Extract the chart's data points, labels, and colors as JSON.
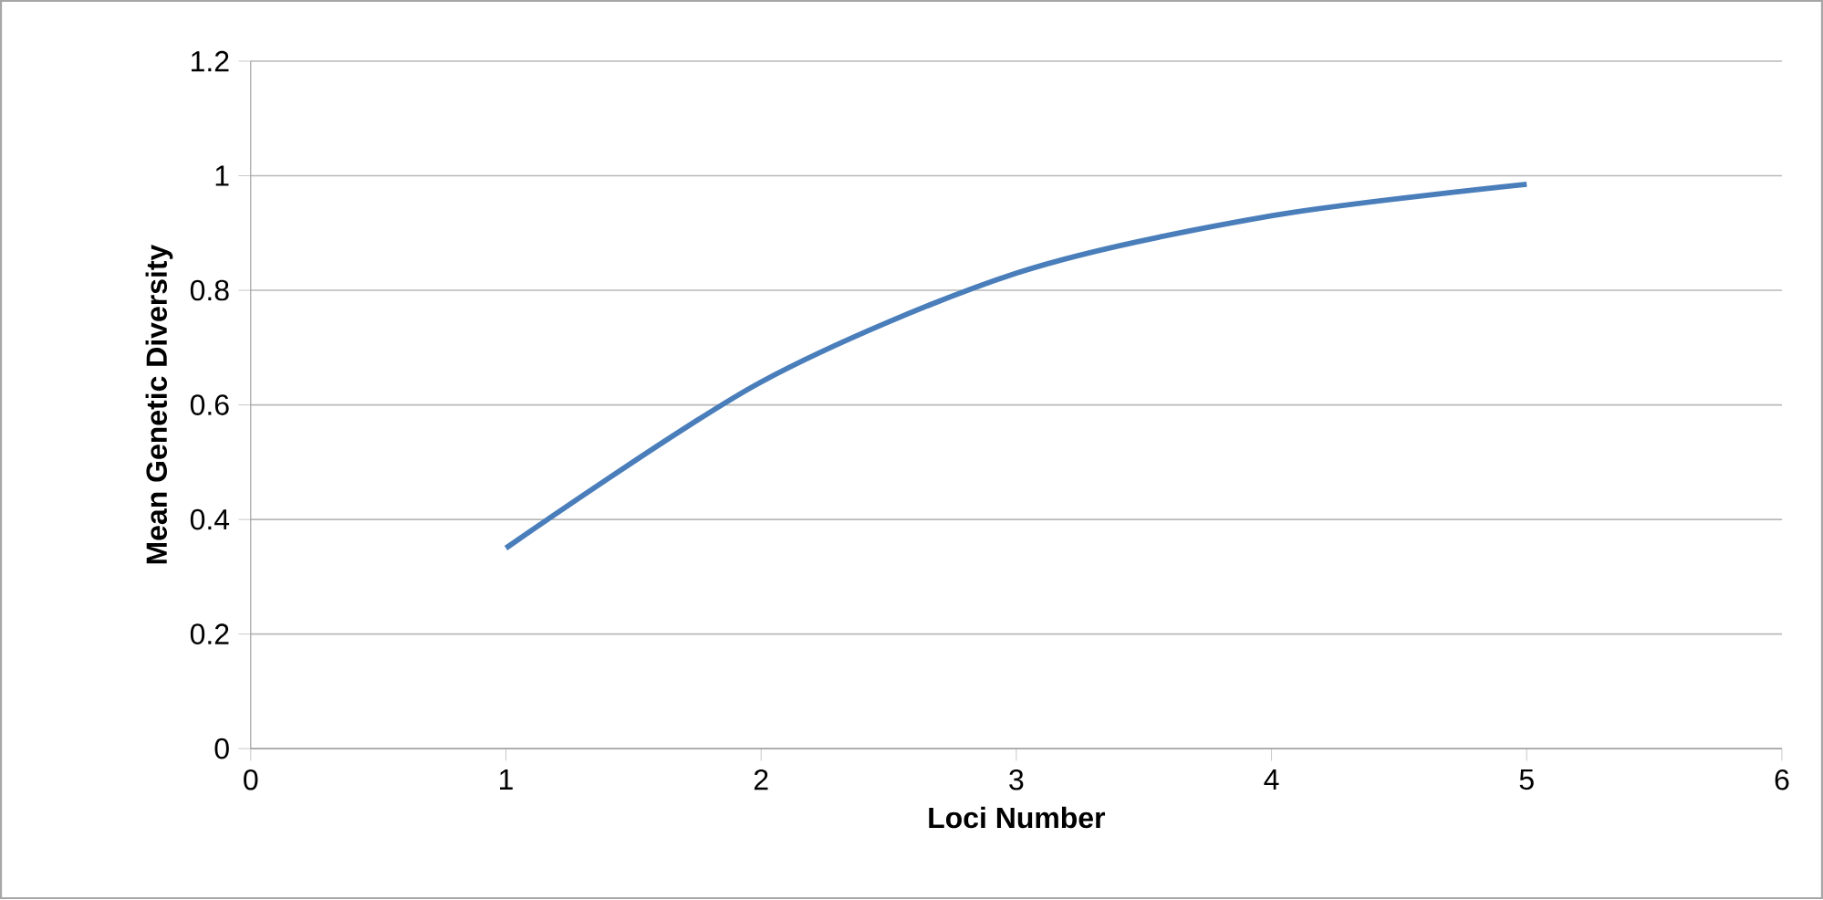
{
  "chart_data": {
    "type": "line",
    "xlabel": "Loci Number",
    "ylabel": "Mean Genetic Diversity",
    "x": [
      1,
      2,
      3,
      4,
      5
    ],
    "series": [
      {
        "color": "#4a7ebb",
        "values": [
          0.35,
          0.64,
          0.83,
          0.93,
          0.985
        ]
      }
    ],
    "xlim": [
      0,
      6
    ],
    "xticks": [
      0,
      1,
      2,
      3,
      4,
      5,
      6
    ],
    "ylim": [
      0,
      1.2
    ],
    "yticks": [
      0,
      0.2,
      0.4,
      0.6,
      0.8,
      1,
      1.2
    ],
    "grid": "y",
    "legend": false,
    "marker": "none",
    "line_style": "solid"
  }
}
